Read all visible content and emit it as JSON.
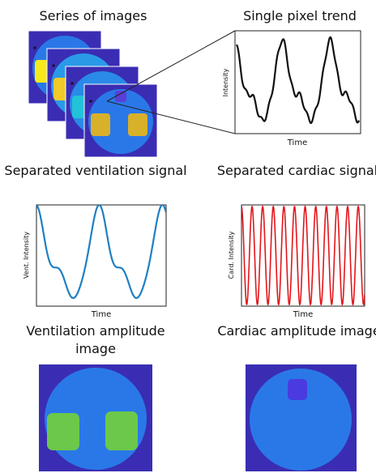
{
  "panels": [
    {
      "title": "Series of images"
    },
    {
      "title": "Single pixel trend",
      "ylabel": "Intensity",
      "xlabel": "Time"
    },
    {
      "title": "Separated ventilation signal",
      "ylabel": "Vent. Intensity",
      "xlabel": "Time"
    },
    {
      "title": "Separated cardiac signal",
      "ylabel": "Card. Intensity",
      "xlabel": "Time"
    },
    {
      "title": "Ventilation amplitude image"
    },
    {
      "title": "Cardiac amplitude image"
    }
  ]
}
